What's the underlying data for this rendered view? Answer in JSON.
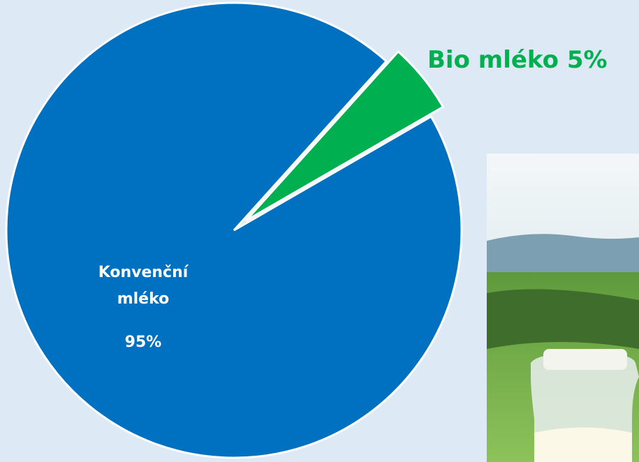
{
  "chart_data": {
    "type": "pie",
    "categories": [
      "Konvenční mléko",
      "Bio mléko"
    ],
    "values": [
      95,
      5
    ],
    "value_labels": [
      "95%",
      "5%"
    ],
    "colors": [
      "#0070c0",
      "#00b050"
    ],
    "exploded": [
      false,
      true
    ]
  }
}
